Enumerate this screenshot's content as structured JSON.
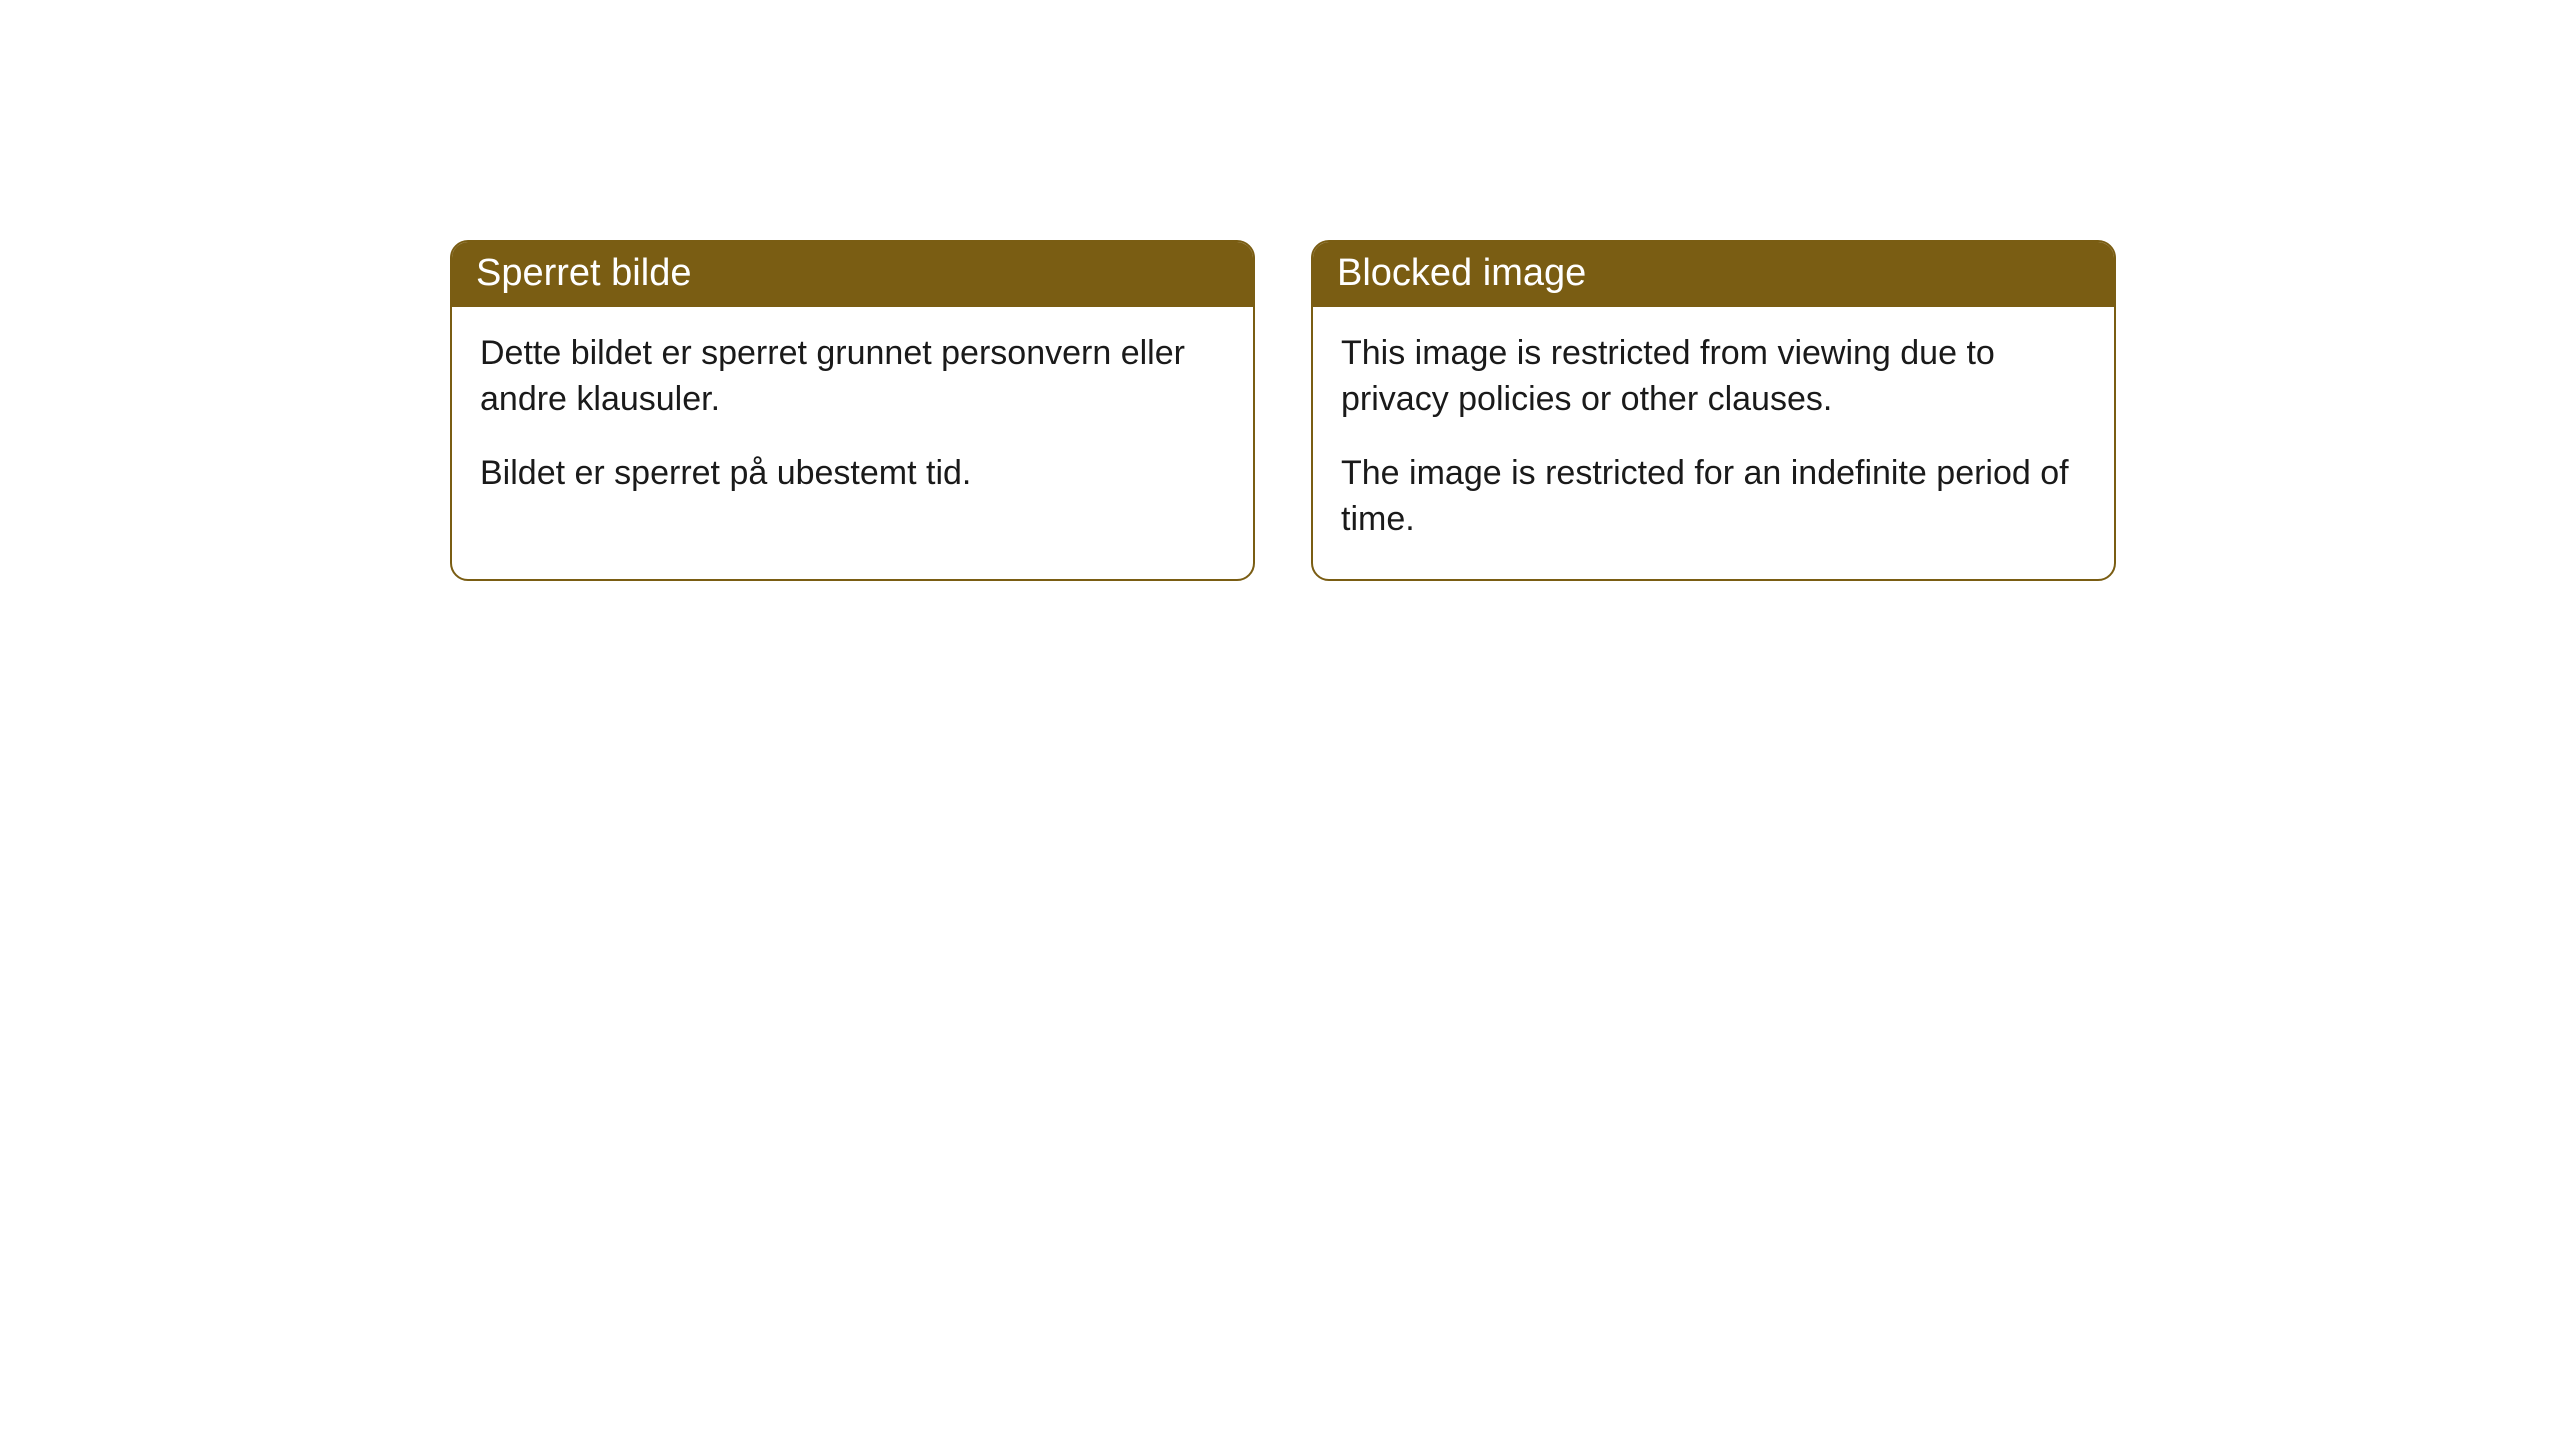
{
  "cards": [
    {
      "title": "Sperret bilde",
      "paragraph1": "Dette bildet er sperret grunnet personvern eller andre klausuler.",
      "paragraph2": "Bildet er sperret på ubestemt tid."
    },
    {
      "title": "Blocked image",
      "paragraph1": "This image is restricted from viewing due to privacy policies or other clauses.",
      "paragraph2": "The image is restricted for an indefinite period of time."
    }
  ],
  "styling": {
    "header_background": "#7a5d13",
    "header_text_color": "#ffffff",
    "border_color": "#7a5d13",
    "body_background": "#ffffff",
    "body_text_color": "#1a1a1a",
    "border_radius": 18,
    "title_fontsize": 38,
    "body_fontsize": 34
  }
}
